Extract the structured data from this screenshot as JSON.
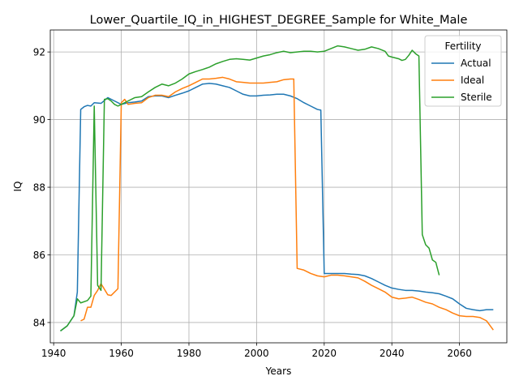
{
  "chart_data": {
    "type": "line",
    "title": "Lower_Quartile_IQ_in_HIGHEST_DEGREE_Sample for White_Male",
    "xlabel": "Years",
    "ylabel": "IQ",
    "xlim": [
      1939,
      2074
    ],
    "ylim": [
      83.4,
      92.65
    ],
    "xticks": [
      1940,
      1960,
      1980,
      2000,
      2020,
      2040,
      2060
    ],
    "yticks": [
      84,
      86,
      88,
      90,
      92
    ],
    "grid": true,
    "legend": {
      "title": "Fertility",
      "position": "top-right"
    },
    "series": [
      {
        "name": "Actual",
        "color": "#1f77b4",
        "points": [
          [
            1942,
            83.75
          ],
          [
            1944,
            83.9
          ],
          [
            1946,
            84.2
          ],
          [
            1947,
            84.9
          ],
          [
            1948,
            90.3
          ],
          [
            1949,
            90.38
          ],
          [
            1950,
            90.42
          ],
          [
            1951,
            90.4
          ],
          [
            1952,
            90.5
          ],
          [
            1954,
            90.48
          ],
          [
            1956,
            90.65
          ],
          [
            1958,
            90.55
          ],
          [
            1960,
            90.45
          ],
          [
            1962,
            90.5
          ],
          [
            1964,
            90.52
          ],
          [
            1966,
            90.55
          ],
          [
            1968,
            90.68
          ],
          [
            1970,
            90.7
          ],
          [
            1972,
            90.7
          ],
          [
            1974,
            90.65
          ],
          [
            1976,
            90.72
          ],
          [
            1978,
            90.78
          ],
          [
            1980,
            90.85
          ],
          [
            1982,
            90.95
          ],
          [
            1984,
            91.05
          ],
          [
            1986,
            91.07
          ],
          [
            1988,
            91.05
          ],
          [
            1990,
            91.0
          ],
          [
            1992,
            90.95
          ],
          [
            1994,
            90.85
          ],
          [
            1996,
            90.75
          ],
          [
            1998,
            90.7
          ],
          [
            2000,
            90.7
          ],
          [
            2002,
            90.72
          ],
          [
            2004,
            90.73
          ],
          [
            2006,
            90.75
          ],
          [
            2008,
            90.75
          ],
          [
            2010,
            90.7
          ],
          [
            2012,
            90.62
          ],
          [
            2014,
            90.5
          ],
          [
            2016,
            90.4
          ],
          [
            2018,
            90.3
          ],
          [
            2019,
            90.28
          ],
          [
            2020,
            85.45
          ],
          [
            2022,
            85.45
          ],
          [
            2024,
            85.45
          ],
          [
            2026,
            85.45
          ],
          [
            2028,
            85.43
          ],
          [
            2030,
            85.42
          ],
          [
            2032,
            85.38
          ],
          [
            2034,
            85.3
          ],
          [
            2036,
            85.2
          ],
          [
            2038,
            85.1
          ],
          [
            2040,
            85.02
          ],
          [
            2042,
            84.98
          ],
          [
            2044,
            84.95
          ],
          [
            2046,
            84.95
          ],
          [
            2048,
            84.93
          ],
          [
            2050,
            84.9
          ],
          [
            2052,
            84.88
          ],
          [
            2054,
            84.85
          ],
          [
            2056,
            84.78
          ],
          [
            2058,
            84.7
          ],
          [
            2060,
            84.55
          ],
          [
            2062,
            84.42
          ],
          [
            2064,
            84.38
          ],
          [
            2066,
            84.35
          ],
          [
            2068,
            84.38
          ],
          [
            2070,
            84.38
          ]
        ]
      },
      {
        "name": "Ideal",
        "color": "#ff7f0e",
        "points": [
          [
            1948,
            84.05
          ],
          [
            1949,
            84.1
          ],
          [
            1950,
            84.45
          ],
          [
            1951,
            84.45
          ],
          [
            1952,
            84.8
          ],
          [
            1953,
            84.95
          ],
          [
            1954,
            85.15
          ],
          [
            1956,
            84.82
          ],
          [
            1957,
            84.8
          ],
          [
            1959,
            85.0
          ],
          [
            1960,
            90.5
          ],
          [
            1961,
            90.6
          ],
          [
            1962,
            90.45
          ],
          [
            1964,
            90.48
          ],
          [
            1966,
            90.5
          ],
          [
            1968,
            90.65
          ],
          [
            1970,
            90.72
          ],
          [
            1972,
            90.72
          ],
          [
            1974,
            90.68
          ],
          [
            1976,
            90.82
          ],
          [
            1978,
            90.92
          ],
          [
            1980,
            91.0
          ],
          [
            1982,
            91.1
          ],
          [
            1984,
            91.2
          ],
          [
            1986,
            91.2
          ],
          [
            1988,
            91.22
          ],
          [
            1990,
            91.25
          ],
          [
            1992,
            91.2
          ],
          [
            1994,
            91.12
          ],
          [
            1996,
            91.1
          ],
          [
            1998,
            91.08
          ],
          [
            2000,
            91.08
          ],
          [
            2002,
            91.08
          ],
          [
            2004,
            91.1
          ],
          [
            2006,
            91.12
          ],
          [
            2008,
            91.18
          ],
          [
            2010,
            91.2
          ],
          [
            2011,
            91.2
          ],
          [
            2012,
            85.6
          ],
          [
            2014,
            85.55
          ],
          [
            2016,
            85.45
          ],
          [
            2018,
            85.38
          ],
          [
            2020,
            85.35
          ],
          [
            2022,
            85.4
          ],
          [
            2024,
            85.4
          ],
          [
            2026,
            85.38
          ],
          [
            2028,
            85.35
          ],
          [
            2030,
            85.32
          ],
          [
            2032,
            85.22
          ],
          [
            2034,
            85.1
          ],
          [
            2036,
            85.0
          ],
          [
            2038,
            84.9
          ],
          [
            2040,
            84.75
          ],
          [
            2042,
            84.7
          ],
          [
            2044,
            84.72
          ],
          [
            2046,
            84.75
          ],
          [
            2048,
            84.68
          ],
          [
            2050,
            84.6
          ],
          [
            2052,
            84.55
          ],
          [
            2054,
            84.45
          ],
          [
            2056,
            84.38
          ],
          [
            2058,
            84.28
          ],
          [
            2060,
            84.2
          ],
          [
            2062,
            84.18
          ],
          [
            2064,
            84.18
          ],
          [
            2066,
            84.15
          ],
          [
            2068,
            84.05
          ],
          [
            2070,
            83.78
          ]
        ]
      },
      {
        "name": "Sterile",
        "color": "#2ca02c",
        "points": [
          [
            1942,
            83.75
          ],
          [
            1944,
            83.9
          ],
          [
            1946,
            84.2
          ],
          [
            1947,
            84.7
          ],
          [
            1948,
            84.58
          ],
          [
            1950,
            84.65
          ],
          [
            1951,
            84.78
          ],
          [
            1952,
            90.4
          ],
          [
            1953,
            85.1
          ],
          [
            1954,
            84.95
          ],
          [
            1955,
            90.6
          ],
          [
            1956,
            90.62
          ],
          [
            1957,
            90.55
          ],
          [
            1958,
            90.45
          ],
          [
            1959,
            90.4
          ],
          [
            1960,
            90.45
          ],
          [
            1962,
            90.55
          ],
          [
            1964,
            90.65
          ],
          [
            1966,
            90.68
          ],
          [
            1968,
            90.82
          ],
          [
            1970,
            90.95
          ],
          [
            1972,
            91.05
          ],
          [
            1974,
            91.0
          ],
          [
            1976,
            91.08
          ],
          [
            1978,
            91.2
          ],
          [
            1980,
            91.35
          ],
          [
            1982,
            91.42
          ],
          [
            1984,
            91.48
          ],
          [
            1986,
            91.55
          ],
          [
            1988,
            91.65
          ],
          [
            1990,
            91.72
          ],
          [
            1992,
            91.78
          ],
          [
            1994,
            91.8
          ],
          [
            1996,
            91.78
          ],
          [
            1998,
            91.76
          ],
          [
            2000,
            91.82
          ],
          [
            2002,
            91.88
          ],
          [
            2004,
            91.92
          ],
          [
            2006,
            91.98
          ],
          [
            2008,
            92.02
          ],
          [
            2010,
            91.98
          ],
          [
            2012,
            92.0
          ],
          [
            2014,
            92.02
          ],
          [
            2016,
            92.02
          ],
          [
            2018,
            92.0
          ],
          [
            2020,
            92.02
          ],
          [
            2022,
            92.1
          ],
          [
            2024,
            92.18
          ],
          [
            2026,
            92.15
          ],
          [
            2028,
            92.1
          ],
          [
            2030,
            92.05
          ],
          [
            2032,
            92.08
          ],
          [
            2034,
            92.15
          ],
          [
            2036,
            92.1
          ],
          [
            2038,
            92.02
          ],
          [
            2039,
            91.88
          ],
          [
            2040,
            91.85
          ],
          [
            2042,
            91.8
          ],
          [
            2043,
            91.75
          ],
          [
            2044,
            91.78
          ],
          [
            2045,
            91.9
          ],
          [
            2046,
            92.05
          ],
          [
            2047,
            91.95
          ],
          [
            2048,
            91.88
          ],
          [
            2049,
            86.6
          ],
          [
            2050,
            86.3
          ],
          [
            2051,
            86.2
          ],
          [
            2052,
            85.85
          ],
          [
            2053,
            85.78
          ],
          [
            2054,
            85.4
          ]
        ]
      }
    ]
  }
}
